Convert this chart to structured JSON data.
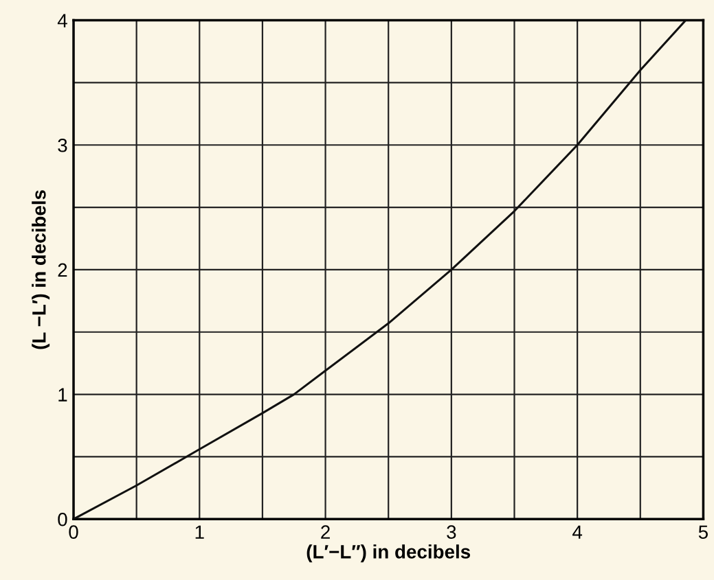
{
  "chart_data": {
    "type": "line",
    "xlabel": "(L′−L″) in decibels",
    "ylabel": "(L −L′) in decibels",
    "x": [
      0,
      0.5,
      1,
      1.5,
      1.75,
      2,
      2.5,
      3,
      3.5,
      4,
      4.5,
      4.86
    ],
    "series": [
      {
        "color": "#111111",
        "values": [
          0,
          0.27,
          0.56,
          0.85,
          1.0,
          1.19,
          1.57,
          2.0,
          2.47,
          3.0,
          3.6,
          4.0
        ]
      }
    ],
    "xlim": [
      0,
      5
    ],
    "ylim": [
      0,
      4
    ],
    "xticks": [
      0,
      {
        "value": 0.5,
        "label": null
      },
      1,
      {
        "value": 1.5,
        "label": null
      },
      2,
      {
        "value": 2.5,
        "label": null
      },
      3,
      {
        "value": 3.5,
        "label": null
      },
      4,
      {
        "value": 4.5,
        "label": null
      },
      5
    ],
    "yticks": [
      0,
      {
        "value": 0.5,
        "label": null
      },
      1,
      {
        "value": 1.5,
        "label": null
      },
      2,
      {
        "value": 2.5,
        "label": null
      },
      3,
      {
        "value": 3.5,
        "label": null
      },
      4
    ],
    "grid": true,
    "marker": "none",
    "line_style": "solid"
  }
}
